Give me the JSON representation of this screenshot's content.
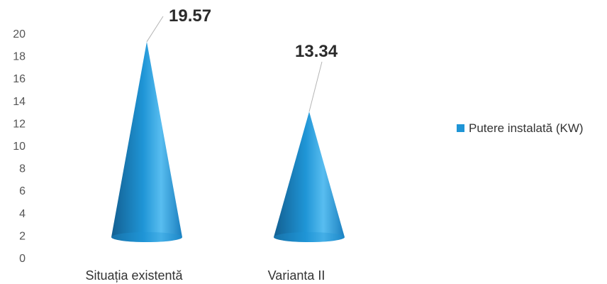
{
  "chart_data": {
    "type": "bar",
    "categories": [
      "Situația existentă",
      "Varianta II"
    ],
    "series": [
      {
        "name": "Putere instalată (KW)",
        "values": [
          19.57,
          13.34
        ],
        "value_labels": [
          "19.57",
          "13.34"
        ]
      }
    ],
    "ylim": [
      0,
      20
    ],
    "yticks": [
      "0",
      "2",
      "4",
      "6",
      "8",
      "10",
      "12",
      "14",
      "16",
      "18",
      "20"
    ],
    "grid": false,
    "legend_position": "right",
    "mark_shape": "cone",
    "colors": {
      "series": "#1f95d6",
      "series_dark": "#135f91",
      "series_light": "#58bdf0"
    }
  }
}
